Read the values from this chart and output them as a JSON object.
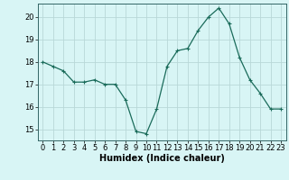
{
  "x": [
    0,
    1,
    2,
    3,
    4,
    5,
    6,
    7,
    8,
    9,
    10,
    11,
    12,
    13,
    14,
    15,
    16,
    17,
    18,
    19,
    20,
    21,
    22,
    23
  ],
  "y": [
    18.0,
    17.8,
    17.6,
    17.1,
    17.1,
    17.2,
    17.0,
    17.0,
    16.3,
    14.9,
    14.8,
    15.9,
    17.8,
    18.5,
    18.6,
    19.4,
    20.0,
    20.4,
    19.7,
    18.2,
    17.2,
    16.6,
    15.9,
    15.9
  ],
  "line_color": "#1a6b5a",
  "marker": "+",
  "marker_size": 3,
  "marker_linewidth": 0.8,
  "bg_color": "#d8f5f5",
  "grid_color": "#b8d8d8",
  "xlabel": "Humidex (Indice chaleur)",
  "xlim": [
    -0.5,
    23.5
  ],
  "ylim": [
    14.5,
    20.6
  ],
  "yticks": [
    15,
    16,
    17,
    18,
    19,
    20
  ],
  "xticks": [
    0,
    1,
    2,
    3,
    4,
    5,
    6,
    7,
    8,
    9,
    10,
    11,
    12,
    13,
    14,
    15,
    16,
    17,
    18,
    19,
    20,
    21,
    22,
    23
  ],
  "tick_fontsize": 6,
  "xlabel_fontsize": 7,
  "linewidth": 0.9
}
